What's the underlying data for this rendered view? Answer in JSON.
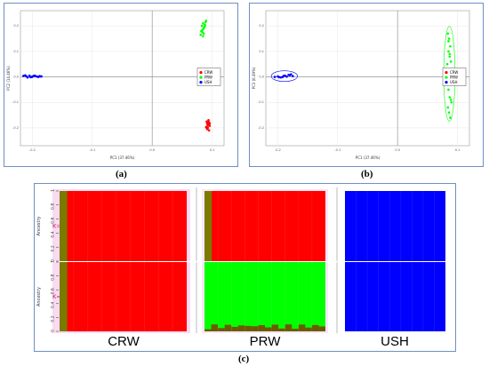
{
  "captions": {
    "a": "(a)",
    "b": "(b)",
    "c": "(c)"
  },
  "colors": {
    "CRW": "#ff0000",
    "PRW": "#00ff00",
    "USH": "#0000ff",
    "K2_extra": "#7a7a00",
    "K3_mix": "#6b5a00",
    "pink": "#f4b6e6"
  },
  "chart_data": [
    {
      "type": "scatter",
      "panel": "a",
      "xlabel": "PC1 (37.46%)",
      "ylabel": "PC2 (14.46%)",
      "xticks": [
        "-0.2",
        "-0.1",
        "0.0",
        "0.1"
      ],
      "yticks": [
        "0.2",
        "0.1",
        "0.0",
        "-0.1",
        "-0.2"
      ],
      "xlim": [
        -0.22,
        0.12
      ],
      "ylim": [
        -0.27,
        0.26
      ],
      "legend": {
        "placement": "right",
        "entries": [
          "CRW",
          "PRW",
          "USH"
        ]
      },
      "series": [
        {
          "name": "CRW",
          "color": "#ff0000",
          "x": [
            0.091,
            0.093,
            0.095,
            0.092,
            0.094,
            0.096,
            0.091,
            0.093,
            0.095,
            0.092,
            0.094,
            0.09,
            0.096,
            0.093,
            0.092,
            0.095
          ],
          "y": [
            -0.175,
            -0.18,
            -0.178,
            -0.185,
            -0.19,
            -0.183,
            -0.195,
            -0.2,
            -0.188,
            -0.205,
            -0.17,
            -0.198,
            -0.192,
            -0.186,
            -0.181,
            -0.21
          ]
        },
        {
          "name": "PRW",
          "color": "#00ff00",
          "x": [
            0.082,
            0.084,
            0.086,
            0.083,
            0.088,
            0.085,
            0.087,
            0.081,
            0.089,
            0.086,
            0.084,
            0.09,
            0.085,
            0.088
          ],
          "y": [
            0.18,
            0.175,
            0.19,
            0.2,
            0.205,
            0.21,
            0.195,
            0.165,
            0.215,
            0.17,
            0.185,
            0.22,
            0.16,
            0.2
          ]
        },
        {
          "name": "USH",
          "color": "#0000ff",
          "x": [
            -0.215,
            -0.21,
            -0.205,
            -0.2,
            -0.195,
            -0.19,
            -0.185,
            -0.212,
            -0.203,
            -0.198,
            -0.192,
            -0.188,
            -0.208,
            -0.196,
            -0.186,
            -0.201
          ],
          "y": [
            0.004,
            0.002,
            0.005,
            0.001,
            0.003,
            0.0,
            0.002,
            0.006,
            -0.001,
            0.004,
            0.001,
            0.003,
            -0.002,
            0.005,
            0.002,
            0.0
          ]
        }
      ]
    },
    {
      "type": "scatter",
      "panel": "b",
      "xlabel": "PC1 (37.46%)",
      "ylabel": "PC3 (6.49%)",
      "xticks": [
        "-0.2",
        "-0.1",
        "0.0",
        "0.1"
      ],
      "yticks": [
        "0.2",
        "0.1",
        "0.0",
        "-0.1",
        "-0.2"
      ],
      "xlim": [
        -0.22,
        0.12
      ],
      "ylim": [
        -0.27,
        0.26
      ],
      "legend": {
        "placement": "right",
        "entries": [
          "CRW",
          "PRW",
          "USH"
        ]
      },
      "series": [
        {
          "name": "CRW",
          "color": "#ff0000",
          "x": [
            0.088,
            0.09,
            0.092,
            0.094,
            0.089,
            0.091,
            0.093,
            0.095,
            0.087,
            0.092,
            0.09,
            0.094
          ],
          "y": [
            0.004,
            0.001,
            -0.002,
            0.003,
            -0.004,
            0.006,
            -0.001,
            0.002,
            0.0,
            -0.005,
            0.005,
            -0.003
          ]
        },
        {
          "name": "PRW",
          "color": "#00ff00",
          "x": [
            0.084,
            0.086,
            0.088,
            0.085,
            0.087,
            0.089,
            0.083,
            0.086,
            0.088,
            0.085,
            0.087,
            0.09,
            0.084,
            0.086,
            0.088,
            0.085,
            0.089,
            0.087
          ],
          "y": [
            0.17,
            0.15,
            0.12,
            0.1,
            0.08,
            0.06,
            0.05,
            0.03,
            -0.03,
            -0.05,
            -0.08,
            -0.1,
            -0.12,
            -0.14,
            -0.16,
            0.14,
            -0.09,
            0.09
          ]
        },
        {
          "name": "USH",
          "color": "#0000ff",
          "x": [
            -0.205,
            -0.2,
            -0.195,
            -0.19,
            -0.185,
            -0.18,
            -0.175,
            -0.198,
            -0.188,
            -0.182,
            -0.192,
            -0.178
          ],
          "y": [
            0.0,
            0.002,
            -0.002,
            0.004,
            0.001,
            0.006,
            0.003,
            -0.001,
            0.005,
            0.008,
            0.0,
            0.01
          ]
        }
      ],
      "ellipses": [
        "PRW",
        "CRW",
        "USH"
      ]
    },
    {
      "type": "bar",
      "panel": "c",
      "stacked": true,
      "ylabel": "Ancestry",
      "yticks": [
        "0",
        "0.2",
        "0.4",
        "0.6",
        "0.8",
        "1"
      ],
      "groups": [
        "CRW",
        "PRW",
        "USH"
      ],
      "rows": [
        {
          "label": "K=2",
          "CRW": {
            "red": 0.97,
            "extra": 0.03
          },
          "PRW": {
            "red": 0.97,
            "extra": 0.03
          },
          "USH": {
            "blue": 1.0
          }
        },
        {
          "label": "K=3",
          "CRW": {
            "red": 0.97,
            "extra": 0.03
          },
          "PRW": {
            "green": 0.9,
            "mix": 0.1
          },
          "USH": {
            "blue": 1.0
          }
        }
      ]
    }
  ]
}
